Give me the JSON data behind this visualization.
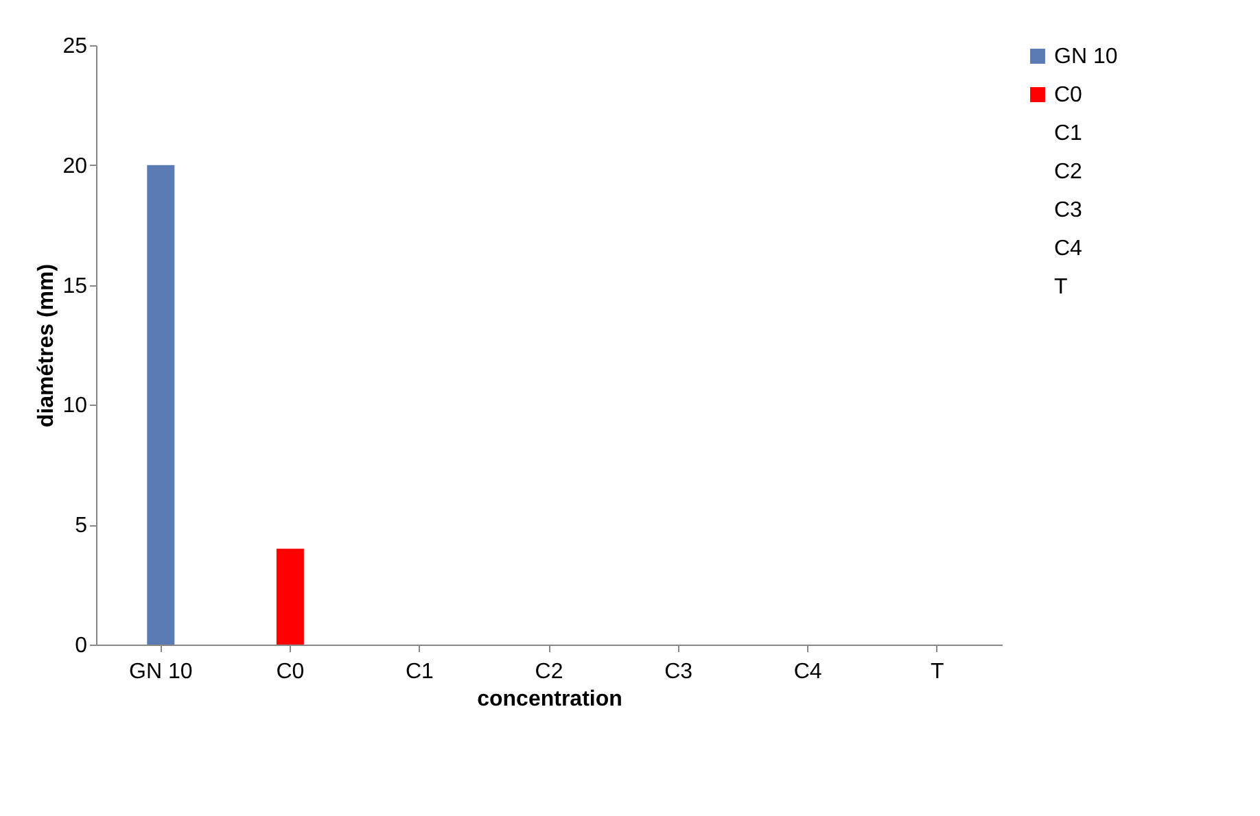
{
  "chart_data": {
    "type": "bar",
    "xlabel": "concentration",
    "ylabel": "diamétres (mm)",
    "categories": [
      "GN 10",
      "C0",
      "C1",
      "C2",
      "C3",
      "C4",
      "T"
    ],
    "series": [
      {
        "name": "GN 10",
        "color": "#5b7bb5",
        "values": [
          20,
          null,
          null,
          null,
          null,
          null,
          null
        ]
      },
      {
        "name": "C0",
        "color": "#ff0000",
        "values": [
          null,
          4,
          null,
          null,
          null,
          null,
          null
        ]
      },
      {
        "name": "C1",
        "values": [
          null,
          null,
          0,
          null,
          null,
          null,
          null
        ]
      },
      {
        "name": "C2",
        "values": [
          null,
          null,
          null,
          0,
          null,
          null,
          null
        ]
      },
      {
        "name": "C3",
        "values": [
          null,
          null,
          null,
          null,
          0,
          null,
          null
        ]
      },
      {
        "name": "C4",
        "values": [
          null,
          null,
          null,
          null,
          null,
          0,
          null
        ]
      },
      {
        "name": "T",
        "values": [
          null,
          null,
          null,
          null,
          null,
          null,
          0
        ]
      }
    ],
    "ylim": [
      0,
      25
    ],
    "yticks": [
      0,
      5,
      10,
      15,
      20,
      25
    ],
    "grid": false,
    "legend": "right"
  }
}
